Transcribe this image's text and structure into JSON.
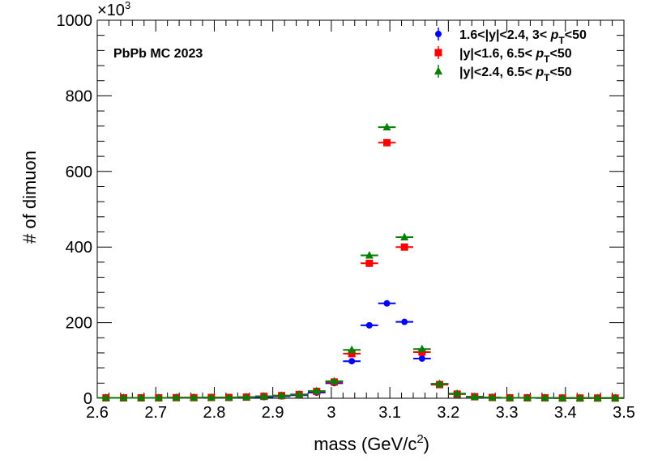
{
  "chart_data": {
    "type": "scatter",
    "title": "",
    "xlabel": "mass (GeV/c",
    "xlabel_sup": "2",
    "xlabel_close": ")",
    "ylabel": "# of dimuon",
    "y_exponent_label": "×10",
    "y_exponent_sup": "3",
    "annotation": "PbPb MC 2023",
    "xlim": [
      2.6,
      3.5
    ],
    "ylim": [
      0,
      1000
    ],
    "x_ticks": [
      "2.6",
      "2.7",
      "2.8",
      "2.9",
      "3",
      "3.1",
      "3.2",
      "3.3",
      "3.4",
      "3.5"
    ],
    "y_ticks": [
      "0",
      "200",
      "400",
      "600",
      "800",
      "1000"
    ],
    "bin_width": 0.03,
    "legend_position": "top-right",
    "legend": [
      {
        "pre": "1.6<|y|<2.4, 3< ",
        "sym": "p",
        "sub": "T",
        "post": "<50"
      },
      {
        "pre": "|y|<1.6, 6.5< ",
        "sym": "p",
        "sub": "T",
        "post": "<50"
      },
      {
        "pre": "|y|<2.4, 6.5< ",
        "sym": "p",
        "sub": "T",
        "post": "<50"
      }
    ],
    "x": [
      2.615,
      2.645,
      2.675,
      2.705,
      2.735,
      2.765,
      2.795,
      2.825,
      2.855,
      2.885,
      2.915,
      2.945,
      2.975,
      3.005,
      3.035,
      3.065,
      3.095,
      3.125,
      3.155,
      3.185,
      3.215,
      3.245,
      3.275,
      3.305,
      3.335,
      3.365,
      3.395,
      3.425,
      3.455,
      3.485
    ],
    "series": [
      {
        "color": "#0000ff",
        "marker": "circle",
        "values": [
          1,
          1,
          1,
          1,
          1,
          1,
          1.5,
          1.5,
          2,
          3,
          5,
          8,
          15,
          40,
          98,
          193,
          251,
          202,
          105,
          38,
          12,
          4,
          2,
          1,
          1,
          0.5,
          0.5,
          0.5,
          0.5,
          0.5
        ]
      },
      {
        "color": "#ff0000",
        "marker": "square",
        "values": [
          1,
          1,
          1,
          1,
          1.5,
          1.5,
          2,
          2,
          3,
          5,
          7,
          10,
          18,
          43,
          118,
          357,
          676,
          400,
          122,
          36,
          11,
          4,
          2,
          1,
          1,
          1,
          0.5,
          0.5,
          0.5,
          0.5
        ]
      },
      {
        "color": "#008000",
        "marker": "triangle",
        "values": [
          1,
          1,
          1,
          1,
          1.5,
          1.5,
          2,
          2,
          3,
          5,
          7,
          10,
          19,
          45,
          128,
          378,
          717,
          426,
          130,
          38,
          12,
          4,
          2,
          1,
          1,
          1,
          0.5,
          0.5,
          0.5,
          0.5
        ]
      }
    ]
  }
}
